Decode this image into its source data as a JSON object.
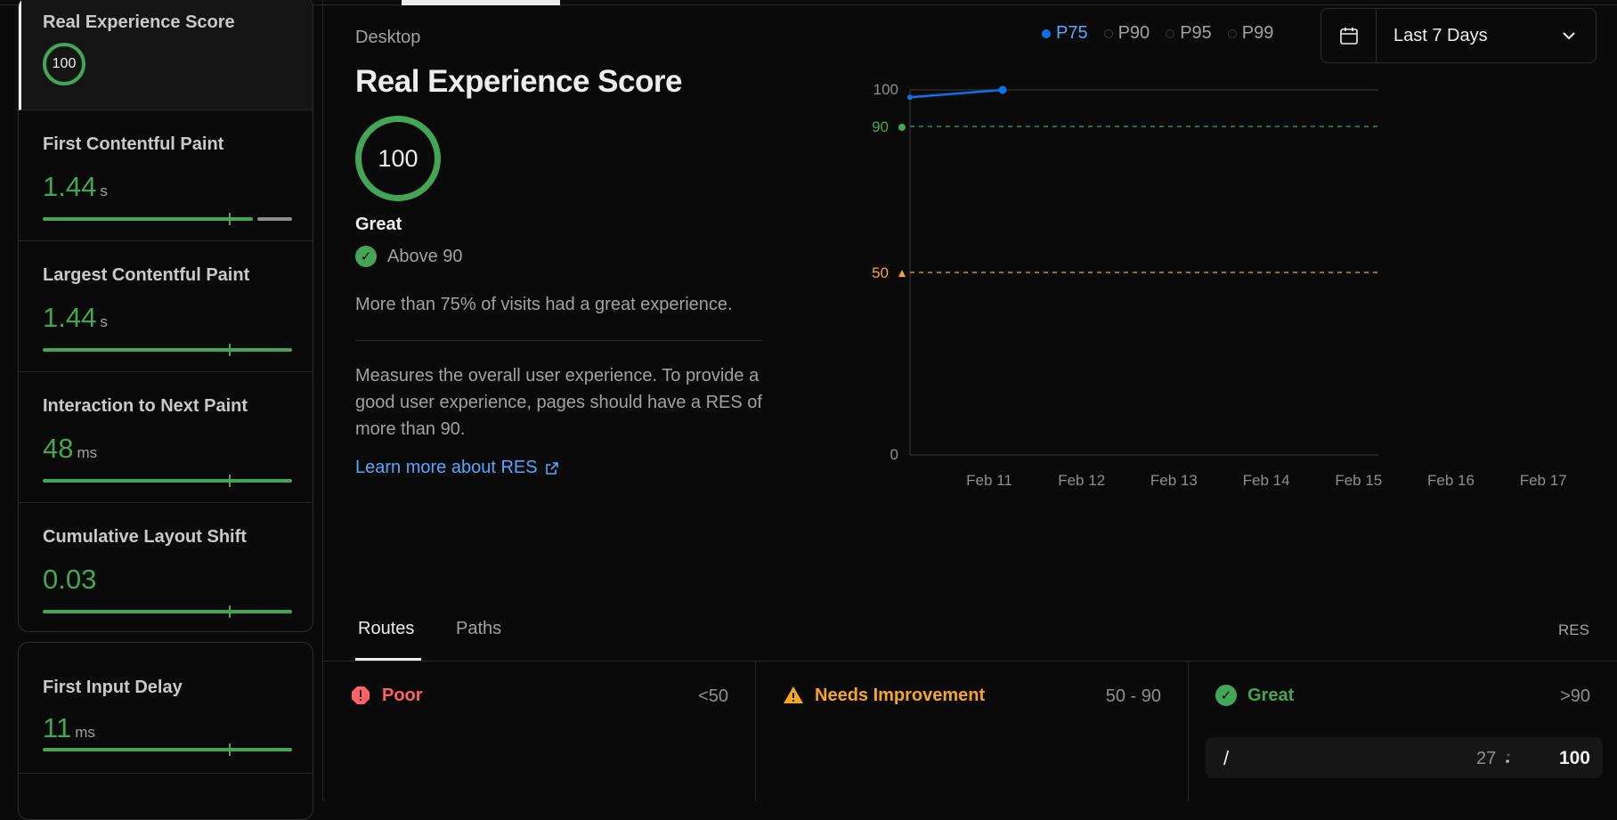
{
  "sidebar": {
    "items": [
      {
        "label": "Real Experience Score",
        "ring": "100"
      },
      {
        "label": "First Contentful Paint",
        "value": "1.44",
        "unit": "s"
      },
      {
        "label": "Largest Contentful Paint",
        "value": "1.44",
        "unit": "s"
      },
      {
        "label": "Interaction to Next Paint",
        "value": "48",
        "unit": "ms"
      },
      {
        "label": "Cumulative Layout Shift",
        "value": "0.03",
        "unit": ""
      },
      {
        "label": "First Input Delay",
        "value": "11",
        "unit": "ms"
      }
    ]
  },
  "main": {
    "device": "Desktop",
    "title": "Real Experience Score",
    "score": "100",
    "rating": "Great",
    "threshold": "Above 90",
    "summary": "More than 75% of visits had a great experience.",
    "description": "Measures the overall user experience. To provide a good user experience, pages should have a RES of more than 90.",
    "learn_more": "Learn more about RES"
  },
  "percentiles": [
    {
      "label": "P75",
      "active": true
    },
    {
      "label": "P90",
      "active": false
    },
    {
      "label": "P95",
      "active": false
    },
    {
      "label": "P99",
      "active": false
    }
  ],
  "date_range": {
    "label": "Last 7 Days"
  },
  "colors": {
    "great": "#45a557",
    "needs": "#f5a623",
    "poor": "#ff6166",
    "accent": "#0a72ef"
  },
  "chart_data": {
    "type": "line",
    "x": [
      "Feb 10",
      "Feb 11"
    ],
    "x_tick_labels": [
      "Feb 11",
      "Feb 12",
      "Feb 13",
      "Feb 14",
      "Feb 15",
      "Feb 16",
      "Feb 17"
    ],
    "series": [
      {
        "values": [
          98,
          100
        ],
        "color": "#0a72ef"
      }
    ],
    "ylim": [
      0,
      100
    ],
    "y_ticks": [
      "100",
      "0"
    ],
    "thresholds": [
      {
        "value": 90,
        "label": "90",
        "color": "#45a557"
      },
      {
        "value": 50,
        "label": "50",
        "color": "#f5a623"
      }
    ]
  },
  "tabs": [
    {
      "label": "Routes",
      "active": true
    },
    {
      "label": "Paths",
      "active": false
    }
  ],
  "res_label": "RES",
  "buckets": [
    {
      "label": "Poor",
      "range": "<50"
    },
    {
      "label": "Needs Improvement",
      "range": "50 - 90"
    },
    {
      "label": "Great",
      "range": ">90"
    }
  ],
  "routes": [
    {
      "path": "/",
      "count": "27",
      "score": "100"
    }
  ]
}
